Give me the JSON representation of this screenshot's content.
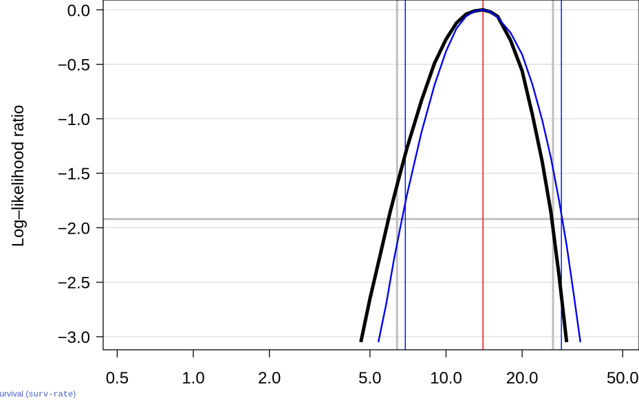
{
  "chart_data": {
    "type": "line",
    "xlabel": {
      "text_start": "Expected Survival (",
      "text_mono": "surv-rate",
      "text_end": ")"
    },
    "ylabel": "Log–likelihood ratio",
    "x_scale": "log",
    "xlim": [
      0.5,
      50
    ],
    "ylim": [
      -3.1,
      0.05
    ],
    "x_ticks": [
      0.5,
      1.0,
      2.0,
      5.0,
      10.0,
      20.0,
      50.0
    ],
    "x_tick_labels": [
      "0.5",
      "1.0",
      "2.0",
      "5.0",
      "10.0",
      "20.0",
      "50.0"
    ],
    "y_ticks": [
      0.0,
      -0.5,
      -1.0,
      -1.5,
      -2.0,
      -2.5,
      -3.0
    ],
    "y_tick_labels": [
      "0.0",
      "−0.5",
      "−1.0",
      "−1.5",
      "−2.0",
      "−2.5",
      "−3.0"
    ],
    "grid": true,
    "horizontal_reference": {
      "y": -1.92,
      "color": "#bebebe"
    },
    "vertical_references": [
      {
        "x": 6.4,
        "color": "#bebebe"
      },
      {
        "x": 26.5,
        "color": "#bebebe"
      },
      {
        "x": 6.9,
        "color": "#0000ee"
      },
      {
        "x": 28.6,
        "color": "#0000ee"
      },
      {
        "x": 14.0,
        "color": "#ee0000"
      }
    ],
    "series": [
      {
        "color": "#000000",
        "x": [
          4.6,
          5.0,
          5.5,
          6.0,
          6.5,
          7.0,
          8.0,
          9.0,
          10.0,
          11.0,
          12.0,
          13.0,
          14.0,
          15.0,
          16.0,
          18.0,
          20.0,
          22.0,
          24.0,
          26.0,
          28.0,
          30.0
        ],
        "y": [
          -3.05,
          -2.65,
          -2.24,
          -1.86,
          -1.55,
          -1.27,
          -0.83,
          -0.49,
          -0.27,
          -0.12,
          -0.04,
          -0.01,
          0.0,
          -0.02,
          -0.06,
          -0.28,
          -0.56,
          -0.97,
          -1.39,
          -1.86,
          -2.44,
          -3.05
        ]
      },
      {
        "color": "#0000ee",
        "x": [
          5.4,
          5.8,
          6.2,
          6.6,
          7.0,
          8.0,
          9.0,
          10.0,
          11.0,
          12.0,
          13.0,
          14.0,
          15.0,
          16.0,
          18.0,
          20.0,
          22.0,
          24.0,
          26.0,
          28.0,
          30.0,
          32.0,
          34.0
        ],
        "y": [
          -3.05,
          -2.7,
          -2.31,
          -1.99,
          -1.7,
          -1.12,
          -0.69,
          -0.38,
          -0.17,
          -0.06,
          -0.01,
          0.0,
          -0.02,
          -0.07,
          -0.21,
          -0.41,
          -0.69,
          -1.01,
          -1.36,
          -1.75,
          -2.16,
          -2.61,
          -3.05
        ]
      }
    ]
  }
}
